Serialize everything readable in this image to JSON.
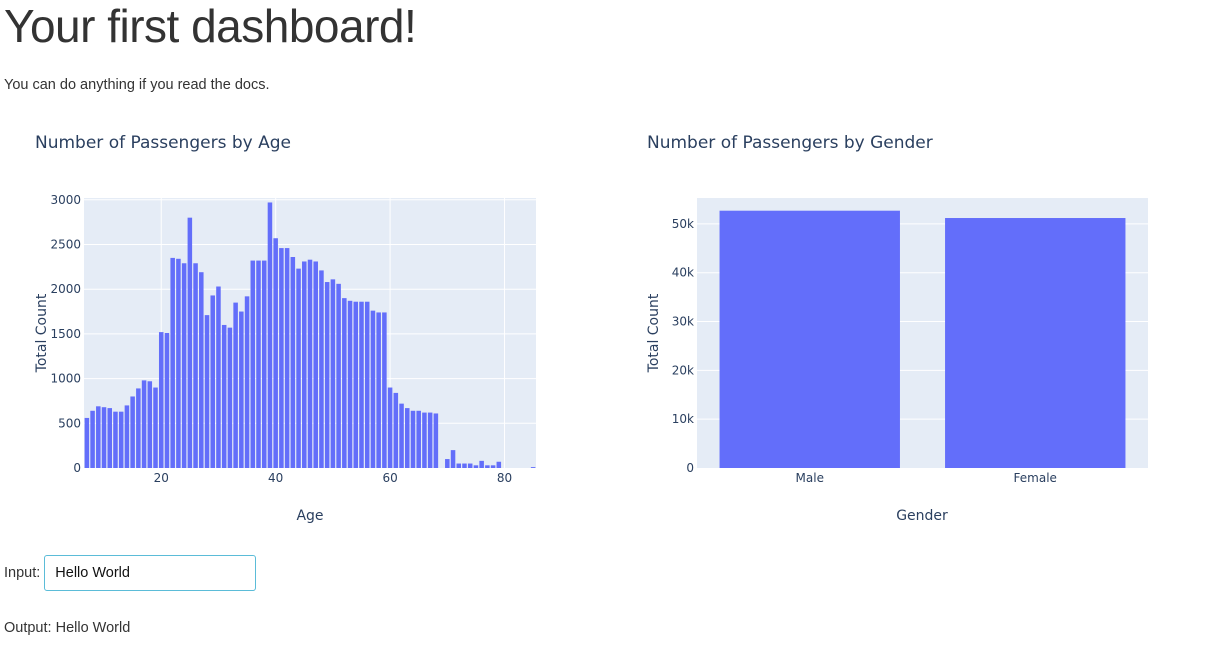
{
  "header": {
    "title": "Your first dashboard!",
    "subtitle": "You can do anything if you read the docs."
  },
  "form": {
    "input_label": "Input:",
    "input_value": "Hello World",
    "output_label": "Output:",
    "output_value": "Hello World"
  },
  "colors": {
    "bar": "#636efa",
    "plot_bg": "#e5ecf6",
    "text": "#2a3f5f",
    "gridline": "#ffffff"
  },
  "chart_data": [
    {
      "type": "bar",
      "title": "Number of Passengers by Age",
      "xlabel": "Age",
      "ylabel": "Total Count",
      "xlim": [
        6.5,
        85.5
      ],
      "ylim": [
        0,
        3020
      ],
      "xticks": [
        20,
        40,
        60,
        80
      ],
      "yticks": [
        0,
        500,
        1000,
        1500,
        2000,
        2500,
        3000
      ],
      "ytick_labels": [
        "0",
        "500",
        "1000",
        "1500",
        "2000",
        "2500",
        "3000"
      ],
      "grid": true,
      "x": [
        7,
        8,
        9,
        10,
        11,
        12,
        13,
        14,
        15,
        16,
        17,
        18,
        19,
        20,
        21,
        22,
        23,
        24,
        25,
        26,
        27,
        28,
        29,
        30,
        31,
        32,
        33,
        34,
        35,
        36,
        37,
        38,
        39,
        40,
        41,
        42,
        43,
        44,
        45,
        46,
        47,
        48,
        49,
        50,
        51,
        52,
        53,
        54,
        55,
        56,
        57,
        58,
        59,
        60,
        61,
        62,
        63,
        64,
        65,
        66,
        67,
        68,
        69,
        70,
        71,
        72,
        73,
        74,
        75,
        76,
        77,
        78,
        79,
        80,
        81,
        82,
        83,
        84,
        85
      ],
      "values": [
        560,
        640,
        690,
        680,
        670,
        630,
        630,
        700,
        800,
        890,
        980,
        970,
        900,
        1520,
        1510,
        2350,
        2340,
        2290,
        2800,
        2290,
        2190,
        1710,
        1930,
        2030,
        1600,
        1570,
        1850,
        1750,
        1920,
        2320,
        2320,
        2320,
        2970,
        2570,
        2460,
        2460,
        2360,
        2230,
        2310,
        2330,
        2310,
        2210,
        2080,
        2110,
        2060,
        1900,
        1870,
        1860,
        1860,
        1860,
        1760,
        1740,
        1740,
        900,
        840,
        720,
        670,
        640,
        640,
        620,
        620,
        610,
        0,
        100,
        200,
        50,
        50,
        50,
        30,
        80,
        30,
        30,
        70,
        0,
        0,
        0,
        0,
        0,
        10
      ]
    },
    {
      "type": "bar",
      "title": "Number of Passengers by Gender",
      "xlabel": "Gender",
      "ylabel": "Total Count",
      "categories": [
        "Male",
        "Female"
      ],
      "values": [
        52700,
        51200
      ],
      "ylim": [
        0,
        55300
      ],
      "yticks": [
        0,
        10000,
        20000,
        30000,
        40000,
        50000
      ],
      "ytick_labels": [
        "0",
        "10k",
        "20k",
        "30k",
        "40k",
        "50k"
      ],
      "grid": true
    }
  ]
}
